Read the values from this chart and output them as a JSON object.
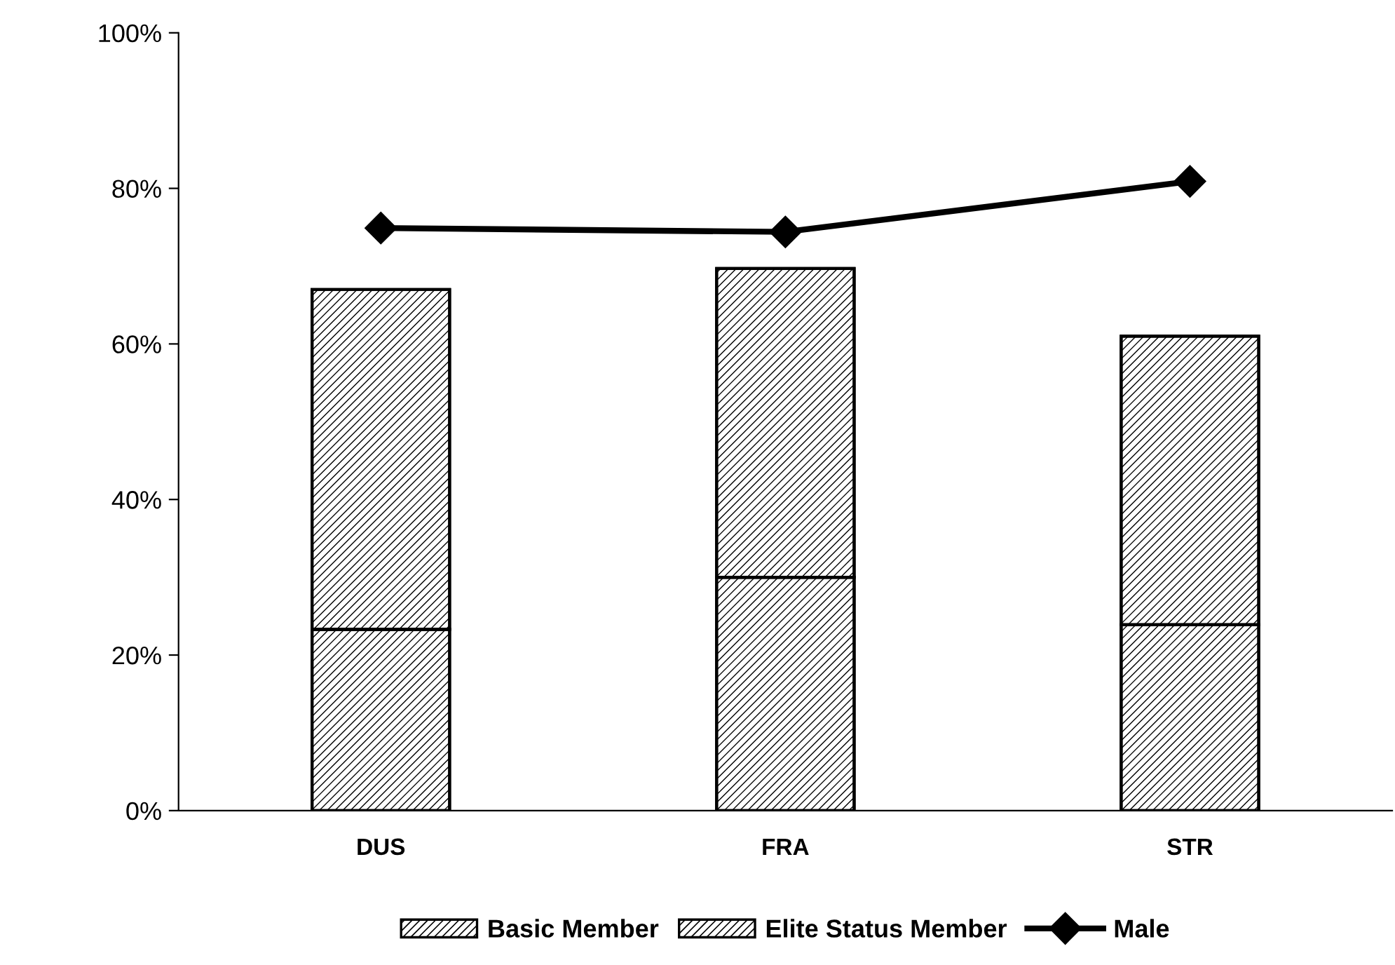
{
  "chart_data": {
    "type": "bar",
    "stacked": true,
    "categories": [
      "DUS",
      "FRA",
      "STR"
    ],
    "series": [
      {
        "name": "Basic Member",
        "color": "#ffffff",
        "values": [
          23.3,
          30.0,
          23.9
        ]
      },
      {
        "name": "Elite Status Member",
        "color": "#ffffff",
        "values": [
          43.7,
          39.7,
          37.1
        ]
      },
      {
        "name": "Male",
        "type": "line",
        "color": "#000000",
        "marker": "diamond",
        "values": [
          74.9,
          74.4,
          80.9
        ]
      }
    ],
    "ylim": [
      0,
      100
    ],
    "yticks": [
      {
        "value": 0,
        "label": "0%"
      },
      {
        "value": 20,
        "label": "20%"
      },
      {
        "value": 40,
        "label": "40%"
      },
      {
        "value": 60,
        "label": "60%"
      },
      {
        "value": 80,
        "label": "80%"
      },
      {
        "value": 100,
        "label": "100%"
      }
    ],
    "grid": false,
    "legend": "bottom"
  }
}
